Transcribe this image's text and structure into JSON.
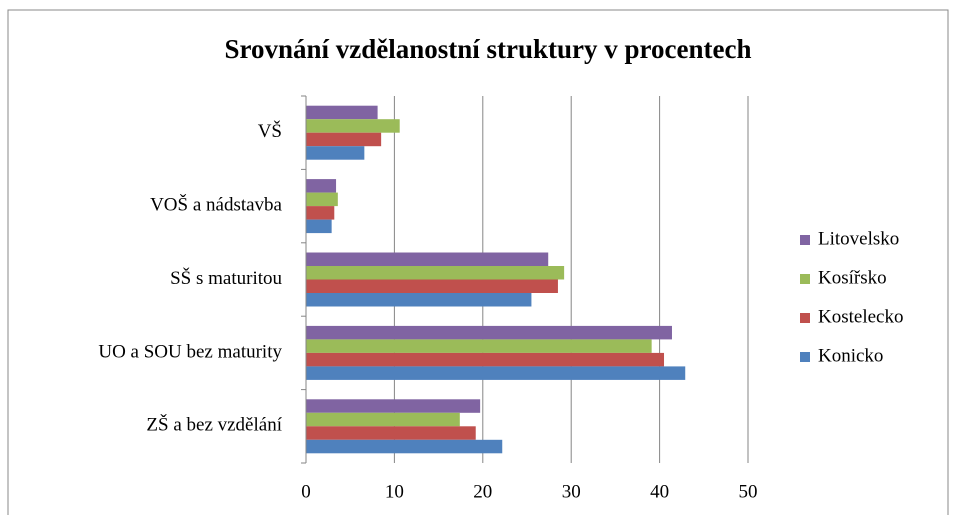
{
  "chart_data": {
    "type": "hbar",
    "title": "Srovnání vzdělanostní struktury v procentech",
    "categories": [
      "VŠ",
      "VOŠ a nádstavba",
      "SŠ s maturitou",
      "UO a SOU bez maturity",
      "ZŠ a bez vzdělání"
    ],
    "series": [
      {
        "name": "Litovelsko",
        "color": "#8064a2",
        "values": [
          8.1,
          3.4,
          27.4,
          41.4,
          19.7
        ]
      },
      {
        "name": "Kosířsko",
        "color": "#9bbb59",
        "values": [
          10.6,
          3.6,
          29.2,
          39.1,
          17.4
        ]
      },
      {
        "name": "Kostelecko",
        "color": "#c0504d",
        "values": [
          8.5,
          3.2,
          28.5,
          40.5,
          19.2
        ]
      },
      {
        "name": "Konicko",
        "color": "#4f81bd",
        "values": [
          6.6,
          2.9,
          25.5,
          42.9,
          22.2
        ]
      }
    ],
    "xlim": [
      0,
      50
    ],
    "xticks": [
      0,
      10,
      20,
      30,
      40,
      50
    ],
    "grid": true,
    "legend": "right"
  }
}
